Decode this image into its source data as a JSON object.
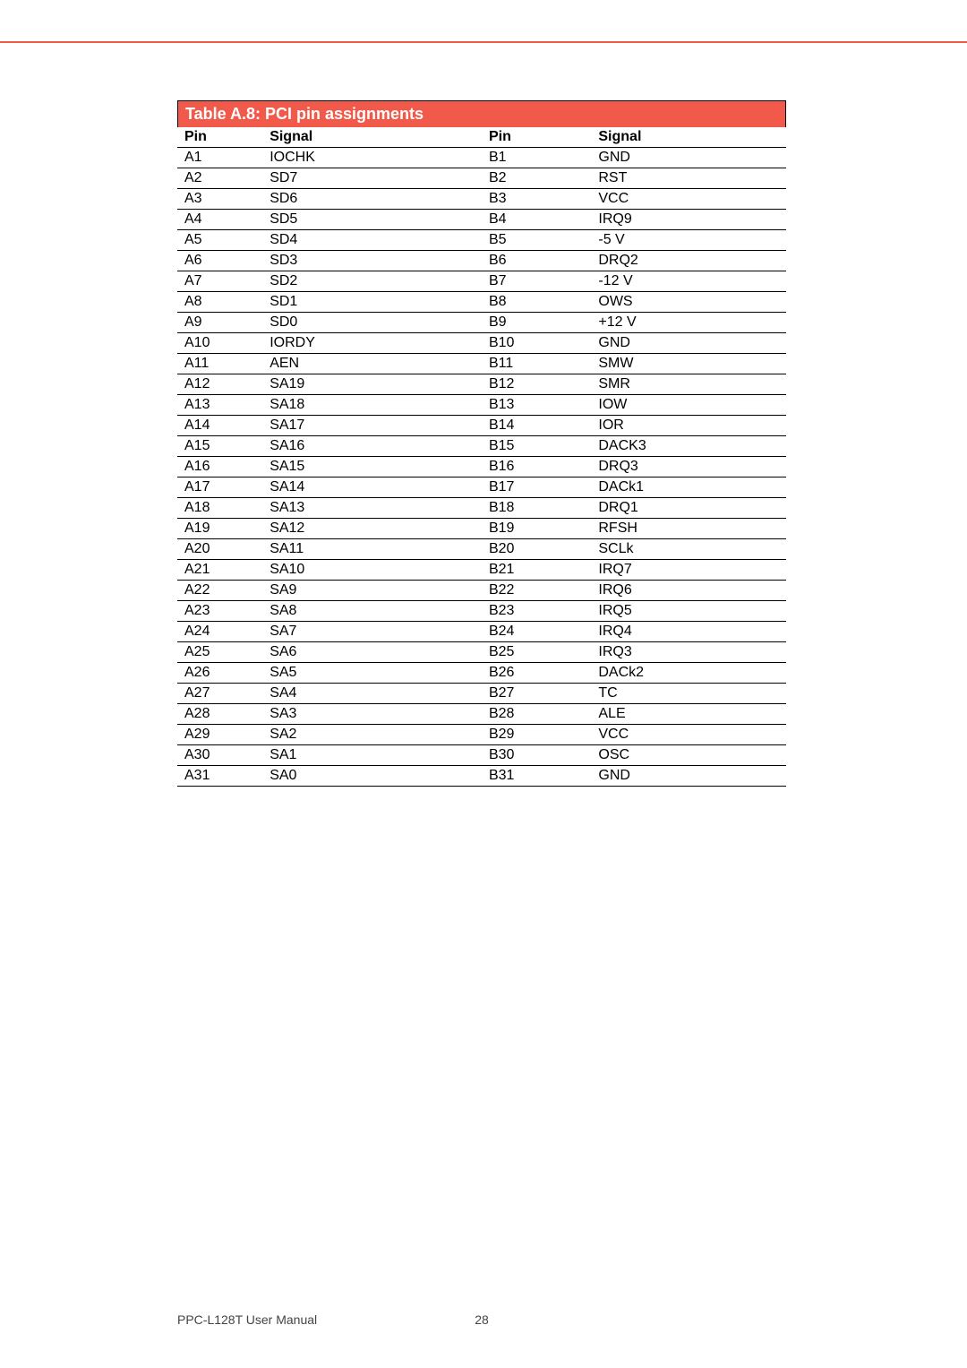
{
  "accent_color": "#f15a4a",
  "table": {
    "title": "Table A.8: PCI pin assignments",
    "headers": [
      "Pin",
      "Signal",
      "Pin",
      "Signal"
    ],
    "rows": [
      [
        "A1",
        "IOCHK",
        "B1",
        "GND"
      ],
      [
        "A2",
        "SD7",
        "B2",
        "RST"
      ],
      [
        "A3",
        "SD6",
        "B3",
        "VCC"
      ],
      [
        "A4",
        "SD5",
        "B4",
        "IRQ9"
      ],
      [
        "A5",
        "SD4",
        "B5",
        "-5 V"
      ],
      [
        "A6",
        "SD3",
        "B6",
        "DRQ2"
      ],
      [
        "A7",
        "SD2",
        "B7",
        "-12 V"
      ],
      [
        "A8",
        "SD1",
        "B8",
        "OWS"
      ],
      [
        "A9",
        "SD0",
        "B9",
        "+12 V"
      ],
      [
        "A10",
        "IORDY",
        "B10",
        "GND"
      ],
      [
        "A11",
        "AEN",
        "B11",
        "SMW"
      ],
      [
        "A12",
        "SA19",
        "B12",
        "SMR"
      ],
      [
        "A13",
        "SA18",
        "B13",
        "IOW"
      ],
      [
        "A14",
        "SA17",
        "B14",
        "IOR"
      ],
      [
        "A15",
        "SA16",
        "B15",
        "DACK3"
      ],
      [
        "A16",
        "SA15",
        "B16",
        "DRQ3"
      ],
      [
        "A17",
        "SA14",
        "B17",
        "DACk1"
      ],
      [
        "A18",
        "SA13",
        "B18",
        "DRQ1"
      ],
      [
        "A19",
        "SA12",
        "B19",
        "RFSH"
      ],
      [
        "A20",
        "SA11",
        "B20",
        "SCLk"
      ],
      [
        "A21",
        "SA10",
        "B21",
        "IRQ7"
      ],
      [
        "A22",
        "SA9",
        "B22",
        "IRQ6"
      ],
      [
        "A23",
        "SA8",
        "B23",
        "IRQ5"
      ],
      [
        "A24",
        "SA7",
        "B24",
        "IRQ4"
      ],
      [
        "A25",
        "SA6",
        "B25",
        "IRQ3"
      ],
      [
        "A26",
        "SA5",
        "B26",
        "DACk2"
      ],
      [
        "A27",
        "SA4",
        "B27",
        "TC"
      ],
      [
        "A28",
        "SA3",
        "B28",
        "ALE"
      ],
      [
        "A29",
        "SA2",
        "B29",
        "VCC"
      ],
      [
        "A30",
        "SA1",
        "B30",
        "OSC"
      ],
      [
        "A31",
        "SA0",
        "B31",
        "GND"
      ]
    ]
  },
  "footer": {
    "manual": "PPC-L128T User Manual",
    "page": "28"
  }
}
